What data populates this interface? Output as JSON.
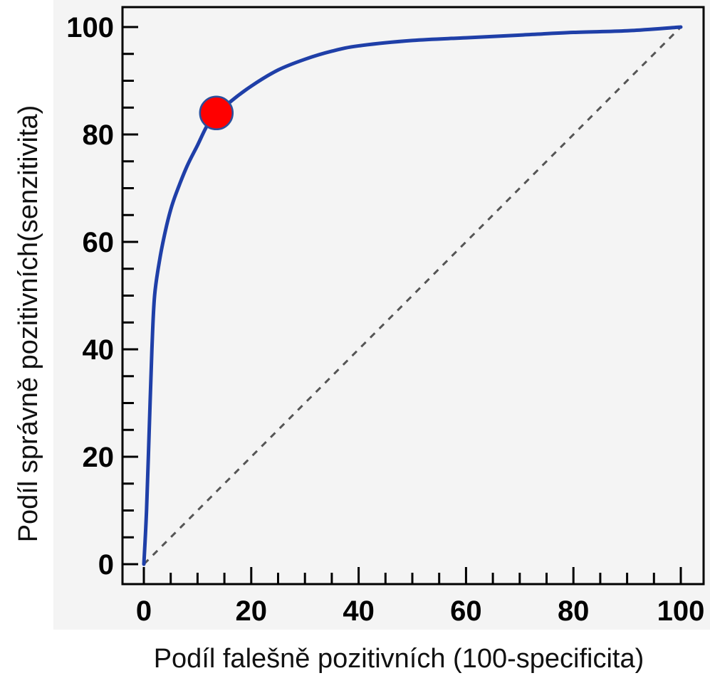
{
  "chart_data": {
    "type": "line",
    "xlabel": "Podíl falešně pozitivních (100-specificita)",
    "ylabel": "Podíl správně pozitivních(senzitivita)",
    "xlim": [
      0,
      100
    ],
    "ylim": [
      0,
      100
    ],
    "x_ticks": [
      "0",
      "20",
      "40",
      "60",
      "80",
      "100"
    ],
    "y_ticks": [
      "0",
      "20",
      "40",
      "60",
      "80",
      "100"
    ],
    "grid": false,
    "legend": "none",
    "series": [
      {
        "kind": "roc-curve",
        "color": "#1f3fa8",
        "x": [
          0,
          0.5,
          1,
          1.5,
          2,
          3,
          4,
          5,
          6,
          8,
          10,
          12,
          14,
          16,
          20,
          25,
          30,
          35,
          40,
          50,
          60,
          70,
          80,
          90,
          100
        ],
        "y": [
          0,
          10,
          25,
          40,
          50,
          57,
          62,
          66,
          69,
          74,
          78,
          82,
          84,
          86,
          89,
          92,
          94,
          95.5,
          96.5,
          97.5,
          98,
          98.5,
          99,
          99.3,
          100
        ]
      },
      {
        "kind": "reference-diagonal",
        "color": "#555555",
        "x": [
          0,
          100
        ],
        "y": [
          0,
          100
        ]
      }
    ],
    "highlight_point": {
      "x": 13.5,
      "y": 84,
      "color": "#ff0000"
    }
  }
}
